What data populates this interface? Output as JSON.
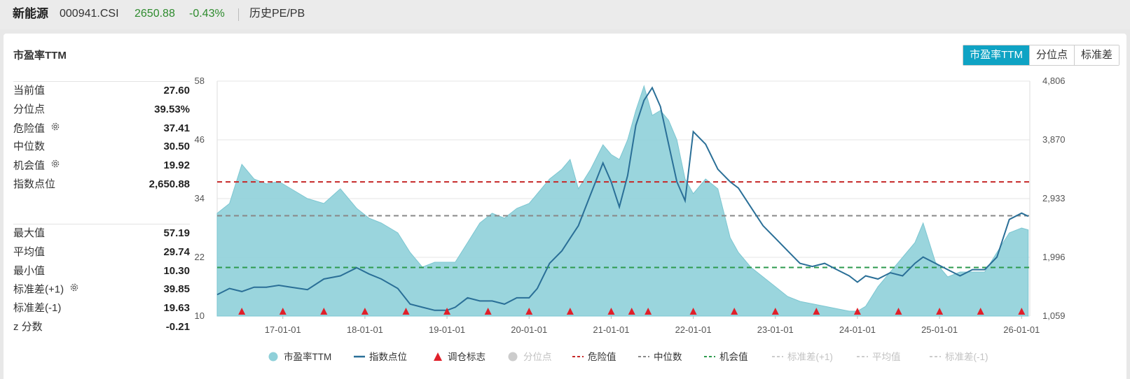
{
  "topbar": {
    "name": "新能源",
    "code": "000941.CSI",
    "price": "2650.88",
    "change": "-0.43%",
    "link": "历史PE/PB"
  },
  "panel": {
    "title": "市盈率TTM",
    "tabs": [
      "市盈率TTM",
      "分位点",
      "标准差"
    ]
  },
  "stats_top": [
    {
      "label": "当前值",
      "value": "27.60",
      "gear": false
    },
    {
      "label": "分位点",
      "value": "39.53%",
      "gear": false
    },
    {
      "label": "危险值",
      "value": "37.41",
      "gear": true
    },
    {
      "label": "中位数",
      "value": "30.50",
      "gear": false
    },
    {
      "label": "机会值",
      "value": "19.92",
      "gear": true
    },
    {
      "label": "指数点位",
      "value": "2,650.88",
      "gear": false
    }
  ],
  "stats_bottom": [
    {
      "label": "最大值",
      "value": "57.19",
      "gear": false
    },
    {
      "label": "平均值",
      "value": "29.74",
      "gear": false
    },
    {
      "label": "最小值",
      "value": "10.30",
      "gear": false
    },
    {
      "label": "标准差(+1)",
      "value": "39.85",
      "gear": true
    },
    {
      "label": "标准差(-1)",
      "value": "19.63",
      "gear": false
    },
    {
      "label": "z 分数",
      "value": "-0.21",
      "gear": false
    }
  ],
  "colors": {
    "pe_fill": "#8fd0d9",
    "pe_line": "#7cc6d1",
    "index_line": "#2a6f97",
    "danger": "#c62828",
    "median": "#888888",
    "opportunity": "#2e9a4e",
    "marker": "#e0202a",
    "accent": "#0fa3c4"
  },
  "chart_data": {
    "type": "area",
    "x_range": [
      "2016-03",
      "2026-02"
    ],
    "y_left_ticks": [
      "58",
      "46",
      "34",
      "22",
      "10"
    ],
    "y_left_lim": [
      10,
      58
    ],
    "y_right_ticks": [
      "4,806",
      "3,870",
      "2,933",
      "1,996",
      "1,059"
    ],
    "y_right_lim": [
      1059,
      4806
    ],
    "x_ticks": [
      "17-01-01",
      "18-01-01",
      "19-01-01",
      "20-01-01",
      "21-01-01",
      "22-01-01",
      "23-01-01",
      "24-01-01",
      "25-01-01",
      "26-01-01"
    ],
    "series": [
      {
        "name": "市盈率TTM",
        "axis": "left",
        "x": [
          2016.2,
          2016.35,
          2016.5,
          2016.65,
          2016.8,
          2016.95,
          2017.1,
          2017.3,
          2017.5,
          2017.7,
          2017.9,
          2018.05,
          2018.2,
          2018.4,
          2018.55,
          2018.7,
          2018.85,
          2019.0,
          2019.1,
          2019.25,
          2019.4,
          2019.55,
          2019.7,
          2019.85,
          2020.0,
          2020.1,
          2020.25,
          2020.4,
          2020.5,
          2020.6,
          2020.75,
          2020.9,
          2021.0,
          2021.1,
          2021.2,
          2021.3,
          2021.4,
          2021.5,
          2021.6,
          2021.7,
          2021.8,
          2021.9,
          2022.0,
          2022.15,
          2022.3,
          2022.45,
          2022.55,
          2022.7,
          2022.85,
          2023.0,
          2023.15,
          2023.3,
          2023.45,
          2023.6,
          2023.75,
          2023.9,
          2024.0,
          2024.1,
          2024.25,
          2024.4,
          2024.55,
          2024.7,
          2024.8,
          2024.95,
          2025.1,
          2025.25,
          2025.4,
          2025.55,
          2025.7,
          2025.85,
          2026.0,
          2026.08
        ],
        "values": [
          31,
          33,
          41,
          38,
          37,
          37.5,
          36,
          34,
          33,
          36,
          32,
          30,
          29,
          27,
          23,
          20,
          21,
          21,
          21,
          25,
          29,
          31,
          30,
          32,
          33,
          35,
          38,
          40,
          42,
          36,
          40,
          45,
          43,
          42,
          46,
          52,
          57,
          51,
          52,
          50,
          46,
          38,
          35,
          38,
          36,
          26,
          23,
          20,
          18,
          16,
          14,
          13,
          12.5,
          12,
          11.5,
          11,
          11,
          12,
          16,
          19,
          22,
          25,
          29,
          21,
          18,
          19,
          19,
          19,
          23,
          27,
          28,
          27.6
        ]
      },
      {
        "name": "指数点位",
        "axis": "right",
        "x": [
          2016.2,
          2016.35,
          2016.5,
          2016.65,
          2016.8,
          2016.95,
          2017.1,
          2017.3,
          2017.5,
          2017.7,
          2017.9,
          2018.05,
          2018.2,
          2018.4,
          2018.55,
          2018.7,
          2018.85,
          2019.0,
          2019.1,
          2019.25,
          2019.4,
          2019.55,
          2019.7,
          2019.85,
          2020.0,
          2020.1,
          2020.25,
          2020.4,
          2020.5,
          2020.6,
          2020.75,
          2020.9,
          2021.0,
          2021.1,
          2021.2,
          2021.3,
          2021.4,
          2021.5,
          2021.6,
          2021.7,
          2021.8,
          2021.9,
          2022.0,
          2022.15,
          2022.3,
          2022.45,
          2022.55,
          2022.7,
          2022.85,
          2023.0,
          2023.15,
          2023.3,
          2023.45,
          2023.6,
          2023.75,
          2023.9,
          2024.0,
          2024.1,
          2024.25,
          2024.4,
          2024.55,
          2024.7,
          2024.8,
          2024.95,
          2025.1,
          2025.25,
          2025.4,
          2025.55,
          2025.7,
          2025.85,
          2026.0,
          2026.08
        ],
        "values": [
          1400,
          1500,
          1450,
          1520,
          1520,
          1550,
          1520,
          1480,
          1650,
          1700,
          1830,
          1730,
          1650,
          1500,
          1250,
          1200,
          1150,
          1150,
          1200,
          1350,
          1300,
          1300,
          1250,
          1350,
          1350,
          1500,
          1900,
          2100,
          2300,
          2500,
          3000,
          3500,
          3200,
          2800,
          3300,
          4100,
          4500,
          4700,
          4400,
          3800,
          3200,
          2900,
          4000,
          3800,
          3400,
          3200,
          3100,
          2800,
          2500,
          2300,
          2100,
          1900,
          1850,
          1900,
          1800,
          1700,
          1600,
          1700,
          1650,
          1750,
          1700,
          1900,
          2000,
          1900,
          1800,
          1700,
          1800,
          1800,
          2000,
          2600,
          2700,
          2650.88
        ]
      }
    ],
    "reference_lines": [
      {
        "name": "危险值",
        "value": 37.41
      },
      {
        "name": "中位数",
        "value": 30.5
      },
      {
        "name": "机会值",
        "value": 19.92
      }
    ],
    "markers": {
      "name": "调仓标志",
      "x": [
        2016.5,
        2017.0,
        2017.5,
        2018.0,
        2018.5,
        2019.0,
        2019.5,
        2020.0,
        2020.5,
        2021.0,
        2021.25,
        2021.45,
        2022.0,
        2022.5,
        2023.0,
        2023.5,
        2024.0,
        2024.5,
        2025.0,
        2025.5,
        2026.0
      ]
    },
    "legend": [
      {
        "label": "市盈率TTM",
        "style": "dot",
        "color": "#8fd0d9",
        "active": true
      },
      {
        "label": "指数点位",
        "style": "line",
        "color": "#2a6f97",
        "active": true
      },
      {
        "label": "调仓标志",
        "style": "triangle",
        "color": "#e0202a",
        "active": true
      },
      {
        "label": "分位点",
        "style": "dot",
        "color": "#cccccc",
        "active": false
      },
      {
        "label": "危险值",
        "style": "dash",
        "color": "#c62828",
        "active": true
      },
      {
        "label": "中位数",
        "style": "dash",
        "color": "#888888",
        "active": true
      },
      {
        "label": "机会值",
        "style": "dash",
        "color": "#2e9a4e",
        "active": true
      },
      {
        "label": "标准差(+1)",
        "style": "dash",
        "color": "#cccccc",
        "active": false
      },
      {
        "label": "平均值",
        "style": "dash",
        "color": "#cccccc",
        "active": false
      },
      {
        "label": "标准差(-1)",
        "style": "dash",
        "color": "#cccccc",
        "active": false
      }
    ],
    "legend_position": "bottom",
    "grid": true
  }
}
